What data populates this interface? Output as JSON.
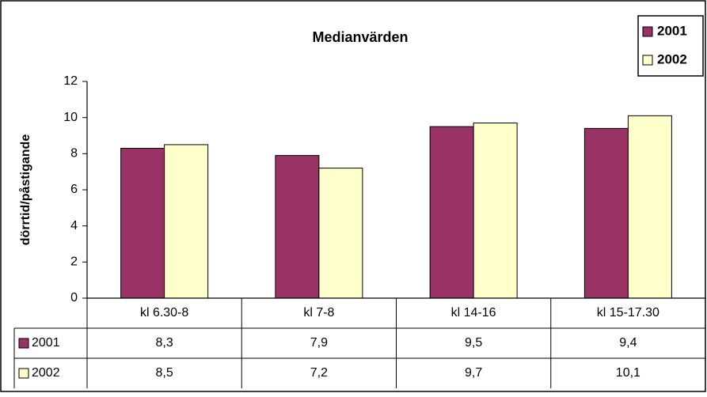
{
  "chart_data": {
    "type": "bar",
    "title": "Medianvärden",
    "y_label": "dörrtid/påstigande",
    "categories": [
      "kl 6.30-8",
      "kl 7-8",
      "kl 14-16",
      "kl 15-17.30"
    ],
    "series": [
      {
        "name": "2001",
        "color": "#993366",
        "values": [
          8.3,
          7.9,
          9.5,
          9.4
        ],
        "value_labels": [
          "8,3",
          "7,9",
          "9,5",
          "9,4"
        ]
      },
      {
        "name": "2002",
        "color": "#FFFFCC",
        "values": [
          8.5,
          7.2,
          9.7,
          10.1
        ],
        "value_labels": [
          "8,5",
          "7,2",
          "9,7",
          "10,1"
        ]
      }
    ],
    "ylim": [
      0,
      12
    ],
    "yticks": [
      0,
      2,
      4,
      6,
      8,
      10,
      12
    ],
    "grid": false,
    "legend": "top-right",
    "data_table": true
  }
}
